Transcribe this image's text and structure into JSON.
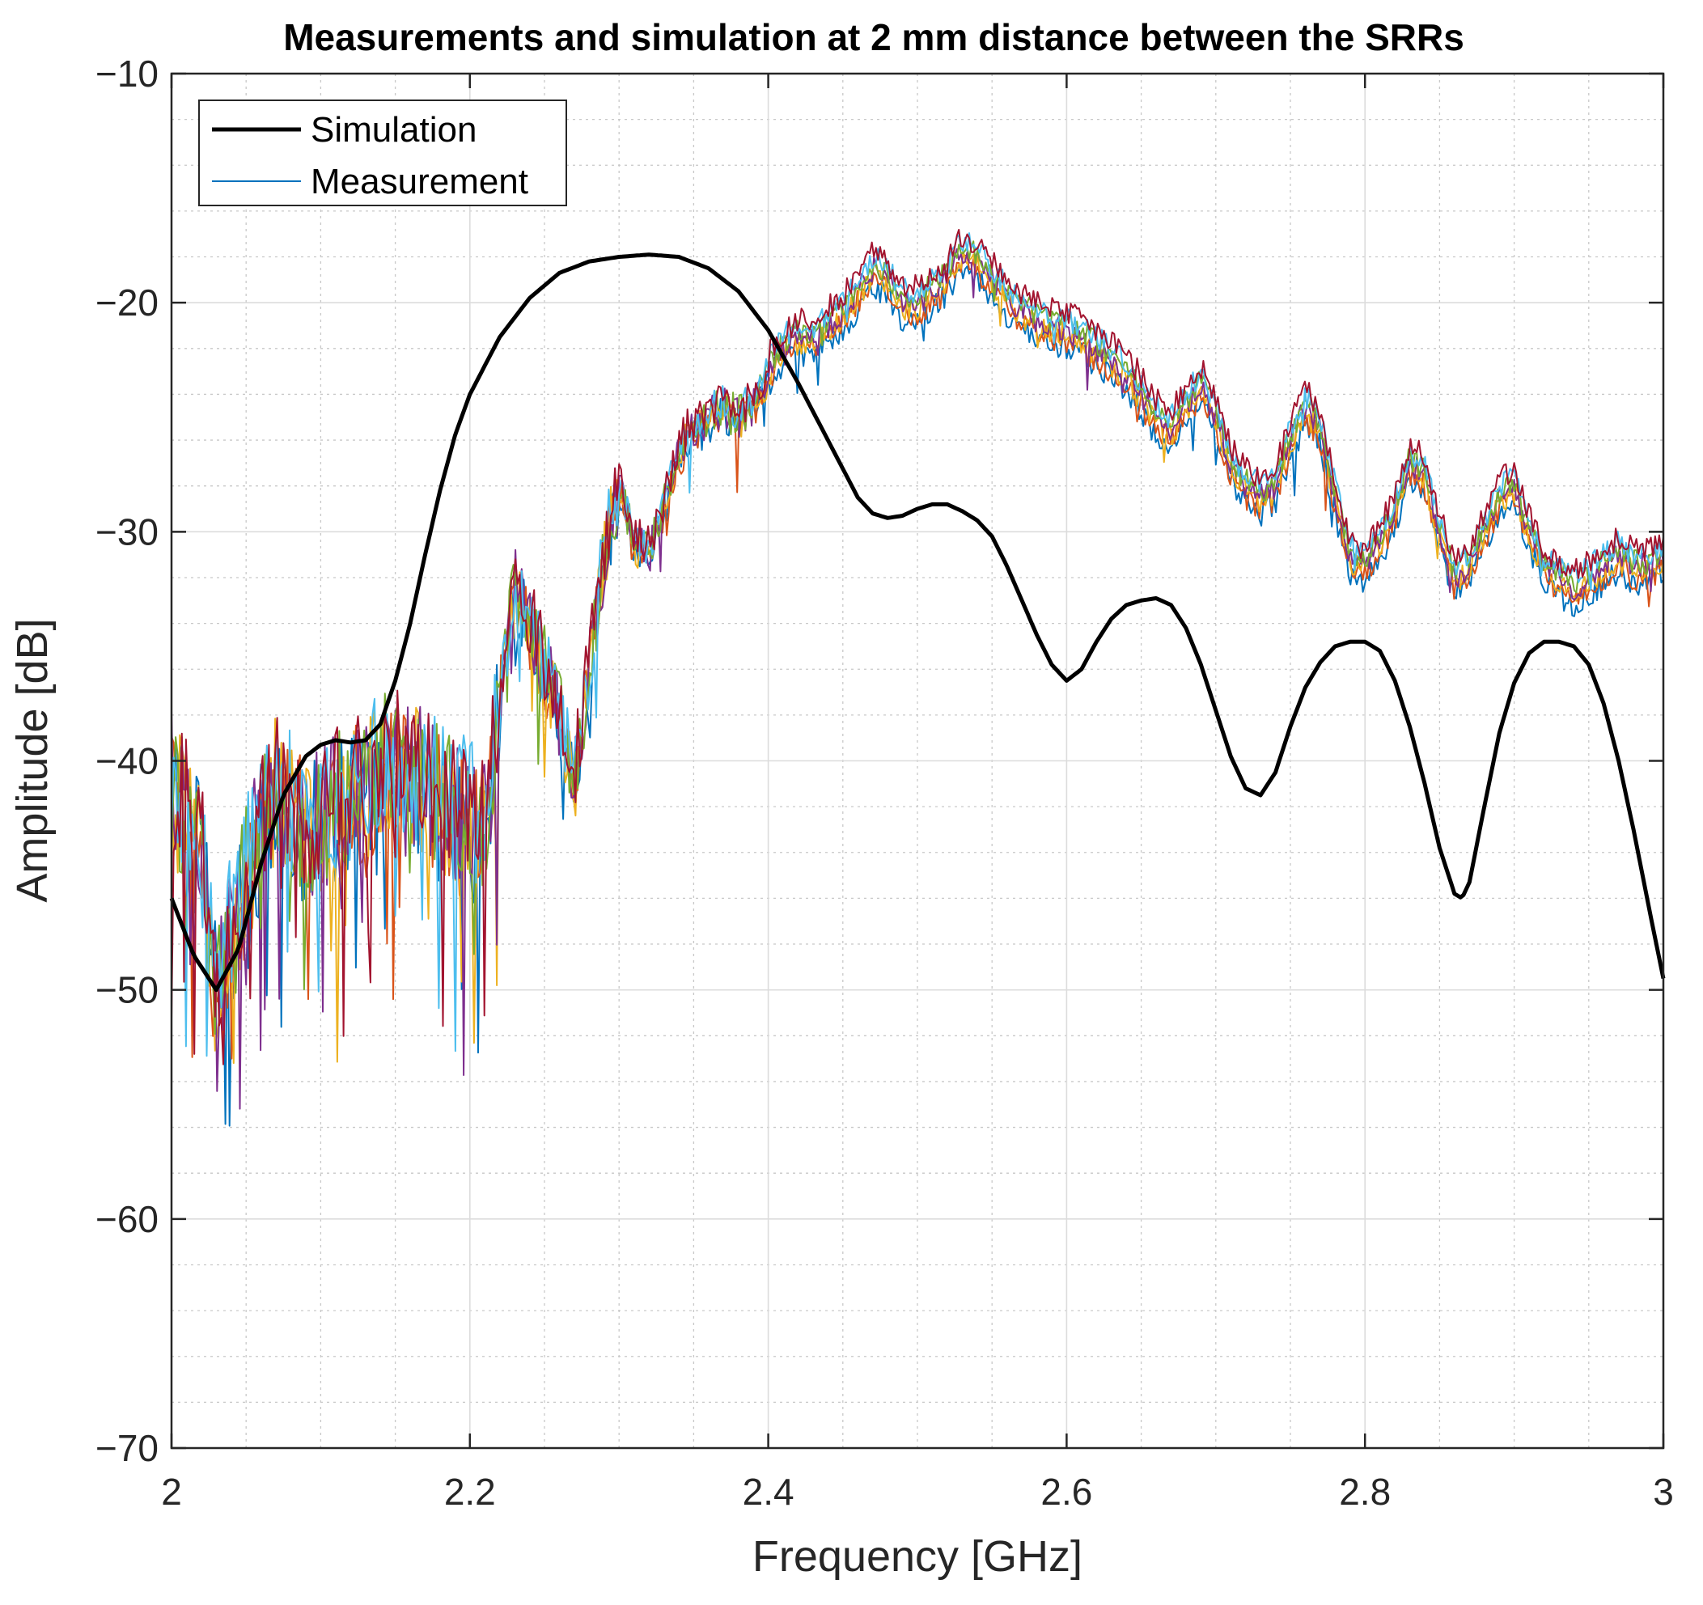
{
  "chart_data": {
    "type": "line",
    "title": "Measurements and simulation at 2 mm distance between the SRRs",
    "xlabel": "Frequency [GHz]",
    "ylabel": "Amplitude [dB]",
    "xlim": [
      2,
      3
    ],
    "ylim": [
      -70,
      -10
    ],
    "xticks": [
      2,
      2.2,
      2.4,
      2.6,
      2.8,
      3
    ],
    "xtick_labels": [
      "2",
      "2.2",
      "2.4",
      "2.6",
      "2.8",
      "3"
    ],
    "yticks": [
      -70,
      -60,
      -50,
      -40,
      -30,
      -20,
      -10
    ],
    "ytick_labels": [
      "−70",
      "−60",
      "−50",
      "−40",
      "−30",
      "−20",
      "−10"
    ],
    "grid": true,
    "minor_grid": true,
    "legend": {
      "location": "top-left",
      "entries": [
        {
          "label": "Simulation",
          "color": "#000000"
        },
        {
          "label": "Measurement",
          "color": "#0072BD"
        }
      ]
    },
    "simulation": {
      "name": "Simulation",
      "color": "#000000",
      "x": [
        2.0,
        2.015,
        2.03,
        2.045,
        2.06,
        2.075,
        2.09,
        2.1,
        2.11,
        2.12,
        2.13,
        2.14,
        2.15,
        2.16,
        2.17,
        2.18,
        2.19,
        2.2,
        2.22,
        2.24,
        2.26,
        2.28,
        2.3,
        2.32,
        2.34,
        2.36,
        2.38,
        2.4,
        2.42,
        2.44,
        2.46,
        2.47,
        2.48,
        2.49,
        2.5,
        2.51,
        2.52,
        2.53,
        2.54,
        2.55,
        2.56,
        2.57,
        2.58,
        2.59,
        2.6,
        2.61,
        2.62,
        2.63,
        2.64,
        2.65,
        2.66,
        2.67,
        2.68,
        2.69,
        2.7,
        2.71,
        2.72,
        2.73,
        2.74,
        2.75,
        2.76,
        2.77,
        2.78,
        2.79,
        2.8,
        2.81,
        2.82,
        2.83,
        2.84,
        2.85,
        2.86,
        2.865,
        2.87,
        2.88,
        2.89,
        2.9,
        2.91,
        2.92,
        2.93,
        2.94,
        2.95,
        2.96,
        2.97,
        2.98,
        2.99,
        3.0
      ],
      "y": [
        -46.0,
        -48.5,
        -50.0,
        -48.2,
        -44.5,
        -41.5,
        -39.8,
        -39.3,
        -39.1,
        -39.2,
        -39.1,
        -38.4,
        -36.5,
        -34.0,
        -31.0,
        -28.2,
        -25.8,
        -24.0,
        -21.5,
        -19.8,
        -18.7,
        -18.2,
        -18.0,
        -17.9,
        -18.0,
        -18.5,
        -19.5,
        -21.2,
        -23.5,
        -26.0,
        -28.5,
        -29.2,
        -29.4,
        -29.3,
        -29.0,
        -28.8,
        -28.8,
        -29.1,
        -29.5,
        -30.2,
        -31.5,
        -33.0,
        -34.5,
        -35.8,
        -36.5,
        -36.0,
        -34.8,
        -33.8,
        -33.2,
        -33.0,
        -32.9,
        -33.2,
        -34.2,
        -35.8,
        -37.8,
        -39.8,
        -41.2,
        -41.5,
        -40.5,
        -38.5,
        -36.8,
        -35.7,
        -35.0,
        -34.8,
        -34.8,
        -35.2,
        -36.5,
        -38.5,
        -41.0,
        -43.8,
        -45.8,
        -46.0,
        -45.3,
        -42.0,
        -38.8,
        -36.6,
        -35.3,
        -34.8,
        -34.8,
        -35.0,
        -35.8,
        -37.5,
        -40.0,
        -43.0,
        -46.3,
        -49.5
      ]
    },
    "measurement": {
      "name": "Measurement",
      "runs": [
        {
          "color": "#0072BD"
        },
        {
          "color": "#D95319"
        },
        {
          "color": "#EDB120"
        },
        {
          "color": "#7E2F8E"
        },
        {
          "color": "#77AC30"
        },
        {
          "color": "#4DBEEE"
        },
        {
          "color": "#A2142F"
        }
      ],
      "x": [
        2.0,
        2.02,
        2.03,
        2.05,
        2.07,
        2.09,
        2.11,
        2.13,
        2.15,
        2.17,
        2.19,
        2.21,
        2.22,
        2.23,
        2.24,
        2.25,
        2.26,
        2.27,
        2.28,
        2.29,
        2.3,
        2.31,
        2.32,
        2.33,
        2.34,
        2.35,
        2.36,
        2.37,
        2.38,
        2.39,
        2.4,
        2.41,
        2.42,
        2.43,
        2.44,
        2.45,
        2.46,
        2.47,
        2.48,
        2.49,
        2.5,
        2.51,
        2.52,
        2.53,
        2.54,
        2.55,
        2.56,
        2.57,
        2.58,
        2.59,
        2.6,
        2.61,
        2.62,
        2.63,
        2.64,
        2.65,
        2.66,
        2.67,
        2.68,
        2.69,
        2.7,
        2.71,
        2.72,
        2.73,
        2.74,
        2.75,
        2.76,
        2.77,
        2.78,
        2.79,
        2.8,
        2.81,
        2.82,
        2.83,
        2.84,
        2.85,
        2.86,
        2.87,
        2.88,
        2.89,
        2.9,
        2.91,
        2.92,
        2.93,
        2.94,
        2.95,
        2.96,
        2.97,
        2.98,
        2.99,
        3.0
      ],
      "y": [
        -41.0,
        -44.0,
        -50.0,
        -45.0,
        -41.0,
        -43.0,
        -42.0,
        -41.0,
        -40.0,
        -41.0,
        -42.0,
        -43.0,
        -37.0,
        -32.5,
        -34.0,
        -36.0,
        -38.0,
        -41.0,
        -36.0,
        -31.0,
        -28.0,
        -30.5,
        -31.0,
        -29.0,
        -26.5,
        -25.5,
        -25.0,
        -24.5,
        -25.0,
        -24.5,
        -23.0,
        -22.0,
        -21.5,
        -21.5,
        -21.0,
        -20.5,
        -19.5,
        -18.5,
        -19.0,
        -20.0,
        -20.0,
        -19.5,
        -18.8,
        -17.8,
        -18.2,
        -19.0,
        -19.8,
        -20.3,
        -20.8,
        -21.0,
        -21.2,
        -21.5,
        -22.0,
        -22.5,
        -23.0,
        -24.0,
        -25.0,
        -25.5,
        -24.5,
        -23.5,
        -25.0,
        -27.0,
        -28.0,
        -28.5,
        -28.0,
        -26.0,
        -24.5,
        -25.5,
        -28.5,
        -31.0,
        -31.5,
        -30.5,
        -29.0,
        -27.0,
        -27.5,
        -30.0,
        -32.0,
        -31.5,
        -30.0,
        -28.5,
        -28.0,
        -30.0,
        -31.5,
        -32.0,
        -32.5,
        -32.0,
        -31.5,
        -31.0,
        -31.5,
        -31.5,
        -31.0
      ]
    }
  }
}
